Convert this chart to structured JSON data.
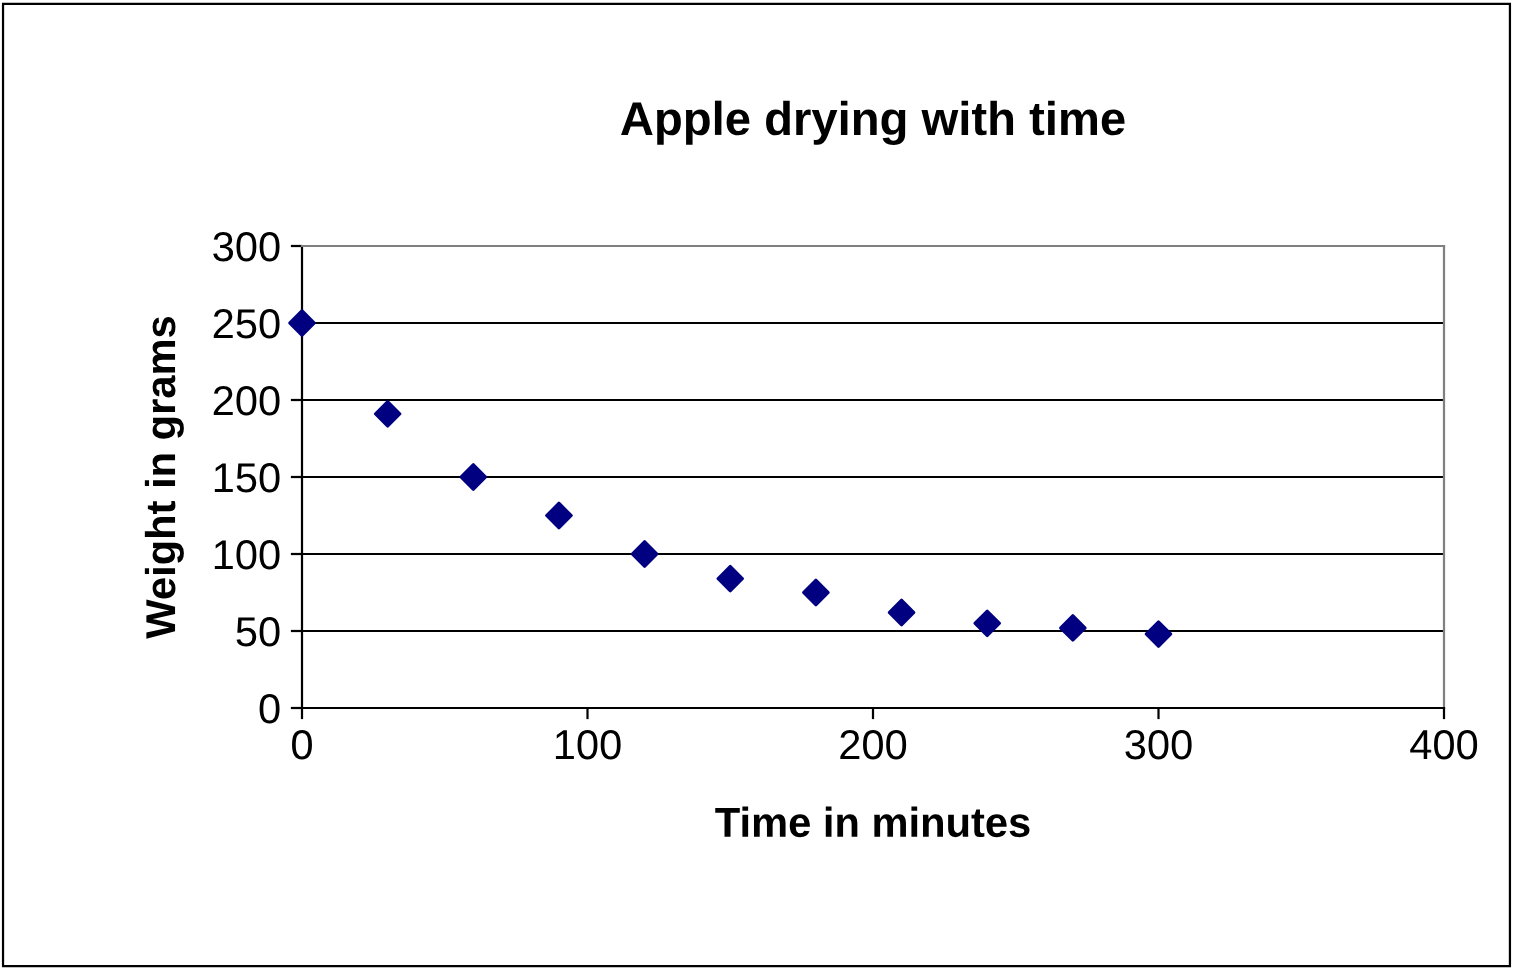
{
  "chart_data": {
    "type": "scatter",
    "title": "Apple drying with time",
    "xlabel": "Time in minutes",
    "ylabel": "Weight in grams",
    "x": [
      0,
      30,
      60,
      90,
      120,
      150,
      180,
      210,
      240,
      270,
      300
    ],
    "series": [
      {
        "color": "#000080",
        "values": [
          250,
          191,
          150,
          125,
          100,
          84,
          75,
          62,
          55,
          52,
          48
        ]
      }
    ],
    "xlim": [
      0,
      400
    ],
    "xticks": [
      0,
      100,
      200,
      300,
      400
    ],
    "ylim": [
      0,
      300
    ],
    "yticks": [
      0,
      50,
      100,
      150,
      200,
      250,
      300
    ],
    "grid": "y",
    "marker": "diamond",
    "legend": false
  }
}
